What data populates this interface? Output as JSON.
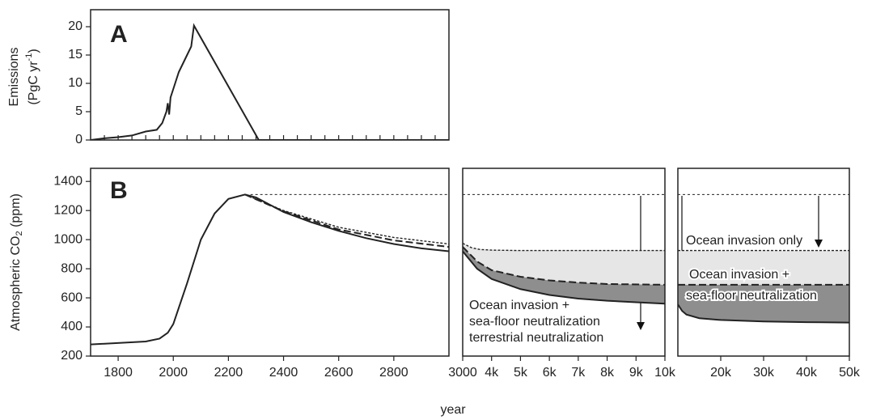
{
  "chart_data": [
    {
      "type": "line",
      "label": "A",
      "ylabel": [
        "Emissions",
        "(PgC yr",
        "-1",
        ")"
      ],
      "xlim": [
        1700,
        3000
      ],
      "ylim": [
        0,
        23
      ],
      "xticks": [
        1750,
        1800,
        1850,
        1900,
        1950,
        2000,
        2050,
        2100,
        2150,
        2200,
        2250,
        2300,
        2350,
        2400,
        2450,
        2500,
        2550,
        2600,
        2650,
        2700,
        2750,
        2800,
        2850,
        2900,
        2950
      ],
      "xtick_labels": false,
      "yticks": [
        0,
        5,
        10,
        15,
        20
      ],
      "series": [
        {
          "style": "solid",
          "color": "#222222",
          "x": [
            1700,
            1750,
            1800,
            1850,
            1900,
            1940,
            1960,
            1975,
            1980,
            1985,
            1990,
            2000,
            2020,
            2050,
            2065,
            2075,
            2310,
            3000
          ],
          "values": [
            0,
            0.3,
            0.5,
            0.8,
            1.5,
            1.8,
            3,
            5,
            6.5,
            4.5,
            7.5,
            9,
            12,
            15,
            16.5,
            20.2,
            0,
            0
          ]
        }
      ]
    },
    {
      "type": "line",
      "label": "B",
      "ylabel": [
        "Atmospheric CO",
        "2",
        " (ppm)"
      ],
      "xlim": [
        1700,
        3000
      ],
      "ylim": [
        200,
        1490
      ],
      "xticks": [
        1800,
        2000,
        2200,
        2400,
        2600,
        2800
      ],
      "xtick_labels": true,
      "yticks": [
        200,
        400,
        600,
        800,
        1000,
        1200,
        1400
      ],
      "series": [
        {
          "style": "dotted",
          "color": "#222222",
          "x": [
            2260,
            2400,
            2600,
            2800,
            3000
          ],
          "values": [
            1310,
            1200,
            1085,
            1015,
            970
          ]
        },
        {
          "style": "dashed",
          "color": "#222222",
          "x": [
            2260,
            2400,
            2600,
            2800,
            3000
          ],
          "values": [
            1310,
            1195,
            1070,
            995,
            950
          ]
        },
        {
          "style": "solid",
          "color": "#222222",
          "x": [
            1700,
            1900,
            1950,
            1980,
            2000,
            2050,
            2100,
            2150,
            2200,
            2260,
            2300,
            2400,
            2500,
            2600,
            2700,
            2800,
            2900,
            3000
          ],
          "values": [
            280,
            300,
            320,
            360,
            420,
            700,
            1000,
            1180,
            1280,
            1310,
            1290,
            1190,
            1120,
            1060,
            1010,
            970,
            940,
            920
          ]
        },
        {
          "style": "reference",
          "color": "#222222",
          "x": [
            2280,
            3000
          ],
          "values": [
            1310,
            1310
          ]
        }
      ]
    },
    {
      "type": "line",
      "xlim": [
        3000,
        10000
      ],
      "ylim": [
        200,
        1490
      ],
      "xticks": [
        3000,
        {
          "value": 4000,
          "label": "4k"
        },
        {
          "value": 5000,
          "label": "5k"
        },
        {
          "value": 6000,
          "label": "6k"
        },
        {
          "value": 7000,
          "label": "7k"
        },
        {
          "value": 8000,
          "label": "8k"
        },
        {
          "value": 9000,
          "label": "9k"
        },
        {
          "value": 10000,
          "label": "10k"
        }
      ],
      "xtick_labels": true,
      "bands": [
        {
          "color": "#e6e6e6"
        },
        {
          "color": "#8e8e8e"
        }
      ],
      "annotation": [
        "Ocean invasion +",
        "sea-floor neutralization",
        "terrestrial neutralization"
      ],
      "series": [
        {
          "style": "dotted",
          "color": "#222222",
          "x": [
            3000,
            3300,
            3600,
            4000,
            5000,
            10000
          ],
          "values": [
            975,
            945,
            932,
            928,
            925,
            925
          ]
        },
        {
          "style": "dashed",
          "color": "#222222",
          "x": [
            3000,
            3500,
            4000,
            5000,
            6000,
            7000,
            8000,
            10000
          ],
          "values": [
            950,
            850,
            790,
            745,
            720,
            705,
            695,
            690
          ]
        },
        {
          "style": "solid",
          "color": "#222222",
          "x": [
            3000,
            3500,
            4000,
            5000,
            6000,
            7000,
            8000,
            9000,
            10000
          ],
          "values": [
            920,
            800,
            730,
            660,
            620,
            595,
            580,
            570,
            560
          ]
        },
        {
          "style": "reference",
          "color": "#222222",
          "x": [
            3000,
            10000
          ],
          "values": [
            1310,
            1310
          ]
        }
      ]
    },
    {
      "type": "line",
      "xlim": [
        10000,
        50000
      ],
      "ylim": [
        200,
        1490
      ],
      "xticks": [
        {
          "value": 20000,
          "label": "20k"
        },
        {
          "value": 30000,
          "label": "30k"
        },
        {
          "value": 40000,
          "label": "40k"
        },
        {
          "value": 50000,
          "label": "50k"
        }
      ],
      "xtick_labels": true,
      "bands": [
        {
          "color": "#e6e6e6"
        },
        {
          "color": "#8e8e8e"
        }
      ],
      "annotation": [
        "Ocean invasion only",
        "Ocean invasion +",
        "sea-floor neutralization"
      ],
      "series": [
        {
          "style": "dotted",
          "color": "#222222",
          "x": [
            10000,
            50000
          ],
          "values": [
            925,
            925
          ]
        },
        {
          "style": "dashed",
          "color": "#222222",
          "x": [
            10000,
            50000
          ],
          "values": [
            690,
            690
          ]
        },
        {
          "style": "solid",
          "color": "#222222",
          "x": [
            10000,
            11000,
            12000,
            15000,
            20000,
            30000,
            40000,
            50000
          ],
          "values": [
            555,
            510,
            485,
            460,
            448,
            438,
            433,
            430
          ]
        },
        {
          "style": "reference",
          "color": "#222222",
          "x": [
            10000,
            50000
          ],
          "values": [
            1310,
            1310
          ]
        }
      ]
    }
  ],
  "xlabel": "year"
}
